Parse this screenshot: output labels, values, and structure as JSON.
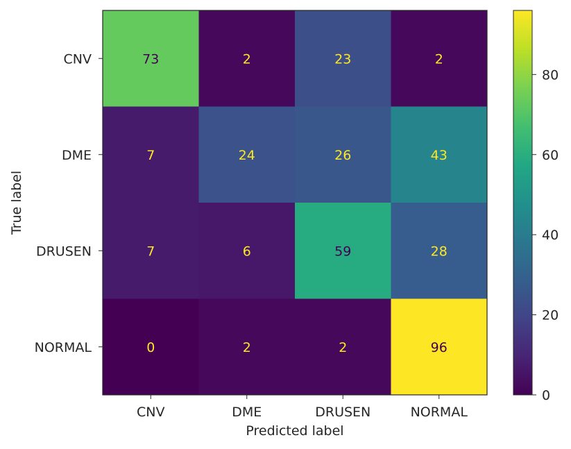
{
  "chart_data": {
    "type": "heatmap",
    "xlabel": "Predicted label",
    "ylabel": "True label",
    "x_categories": [
      "CNV",
      "DME",
      "DRUSEN",
      "NORMAL"
    ],
    "y_categories": [
      "CNV",
      "DME",
      "DRUSEN",
      "NORMAL"
    ],
    "values": [
      [
        73,
        2,
        23,
        2
      ],
      [
        7,
        24,
        26,
        43
      ],
      [
        7,
        6,
        59,
        28
      ],
      [
        0,
        2,
        2,
        96
      ]
    ],
    "colormap": "viridis",
    "color_range": [
      0,
      96
    ],
    "colorbar_ticks": [
      "0",
      "20",
      "40",
      "60",
      "80"
    ],
    "text_color_light": "#fde725",
    "text_color_dark": "#440154"
  }
}
